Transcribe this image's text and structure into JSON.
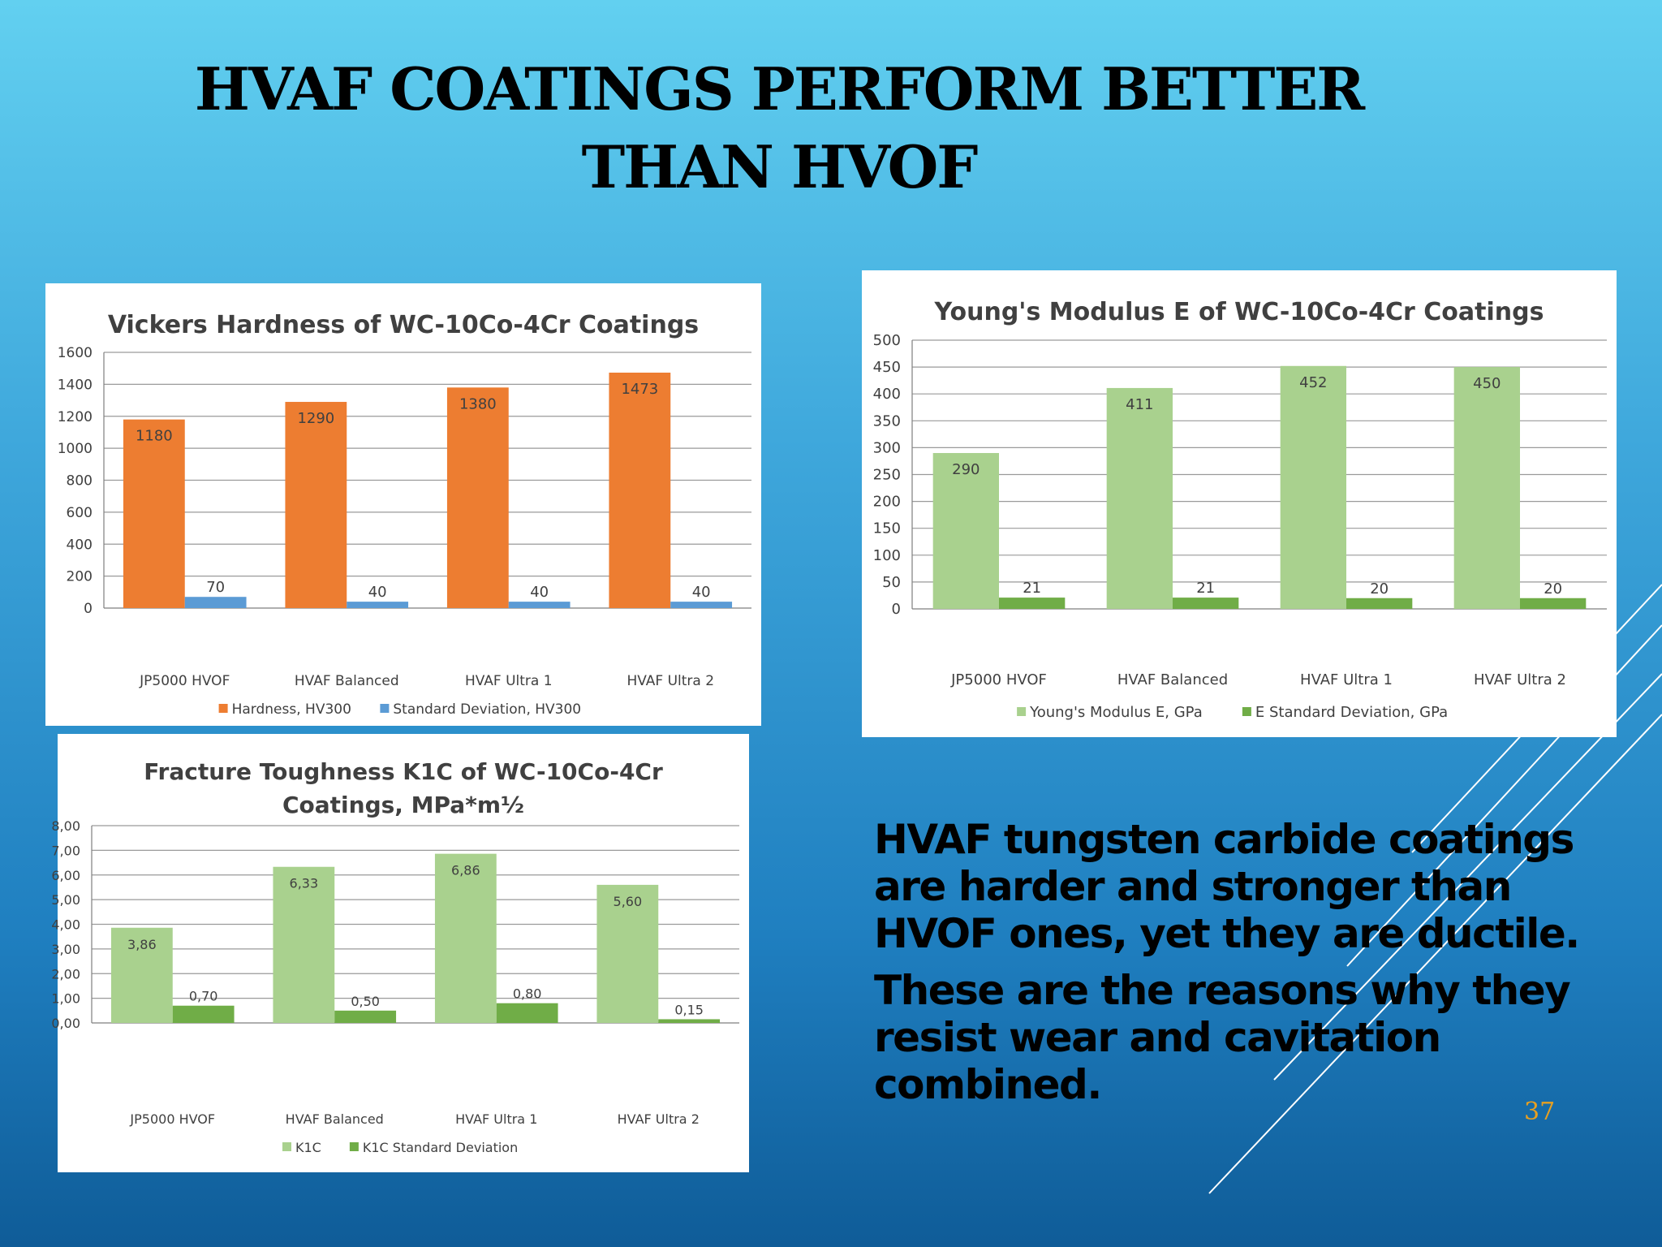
{
  "slide": {
    "title_line1": "HVAF COATINGS PERFORM BETTER",
    "title_line2": "THAN HVOF",
    "body_para1": "HVAF tungsten carbide coatings are harder and stronger than HVOF ones, yet they are ductile.",
    "body_para2": "These are the reasons why they resist wear and cavitation combined.",
    "page_number": "37"
  },
  "chart_data": [
    {
      "id": "hardness",
      "type": "bar",
      "title": "Vickers Hardness of WC-10Co-4Cr Coatings",
      "categories": [
        "JP5000 HVOF",
        "HVAF Balanced",
        "HVAF Ultra 1",
        "HVAF Ultra 2"
      ],
      "series": [
        {
          "name": "Hardness, HV300",
          "values": [
            1180,
            1290,
            1380,
            1473
          ],
          "labels": [
            "1180",
            "1290",
            "1380",
            "1473"
          ],
          "color": "#ed7d31"
        },
        {
          "name": "Standard Deviation, HV300",
          "values": [
            70,
            40,
            40,
            40
          ],
          "labels": [
            "70",
            "40",
            "40",
            "40"
          ],
          "color": "#5b9bd5"
        }
      ],
      "ylim": [
        0,
        1600
      ],
      "yticks": [
        "0",
        "200",
        "400",
        "600",
        "800",
        "1000",
        "1200",
        "1400",
        "1600"
      ],
      "grid": true,
      "legend": "bottom"
    },
    {
      "id": "modulus",
      "type": "bar",
      "title": "Young's Modulus E of WC-10Co-4Cr Coatings",
      "categories": [
        "JP5000 HVOF",
        "HVAF Balanced",
        "HVAF Ultra 1",
        "HVAF Ultra 2"
      ],
      "series": [
        {
          "name": "Young's Modulus E, GPa",
          "values": [
            290,
            411,
            452,
            450
          ],
          "labels": [
            "290",
            "411",
            "452",
            "450"
          ],
          "color": "#a9d18e"
        },
        {
          "name": "E Standard Deviation, GPa",
          "values": [
            21,
            21,
            20,
            20
          ],
          "labels": [
            "21",
            "21",
            "20",
            "20"
          ],
          "color": "#70ad47"
        }
      ],
      "ylim": [
        0,
        500
      ],
      "yticks": [
        "0",
        "50",
        "100",
        "150",
        "200",
        "250",
        "300",
        "350",
        "400",
        "450",
        "500"
      ],
      "grid": true,
      "legend": "bottom"
    },
    {
      "id": "toughness",
      "type": "bar",
      "title": "Fracture Toughness K1C of WC-10Co-4Cr Coatings, MPa*m½",
      "title_lines": [
        "Fracture Toughness K1C of WC-10Co-4Cr",
        "Coatings, MPa*m½"
      ],
      "categories": [
        "JP5000 HVOF",
        "HVAF Balanced",
        "HVAF Ultra 1",
        "HVAF Ultra 2"
      ],
      "series": [
        {
          "name": "K1C",
          "values": [
            3.86,
            6.33,
            6.86,
            5.6
          ],
          "labels": [
            "3,86",
            "6,33",
            "6,86",
            "5,60"
          ],
          "color": "#a9d18e"
        },
        {
          "name": "K1C Standard Deviation",
          "values": [
            0.7,
            0.5,
            0.8,
            0.15
          ],
          "labels": [
            "0,70",
            "0,50",
            "0,80",
            "0,15"
          ],
          "color": "#70ad47"
        }
      ],
      "ylim": [
        0,
        8
      ],
      "yticks": [
        "0,00",
        "1,00",
        "2,00",
        "3,00",
        "4,00",
        "5,00",
        "6,00",
        "7,00",
        "8,00"
      ],
      "grid": true,
      "legend": "bottom"
    }
  ]
}
